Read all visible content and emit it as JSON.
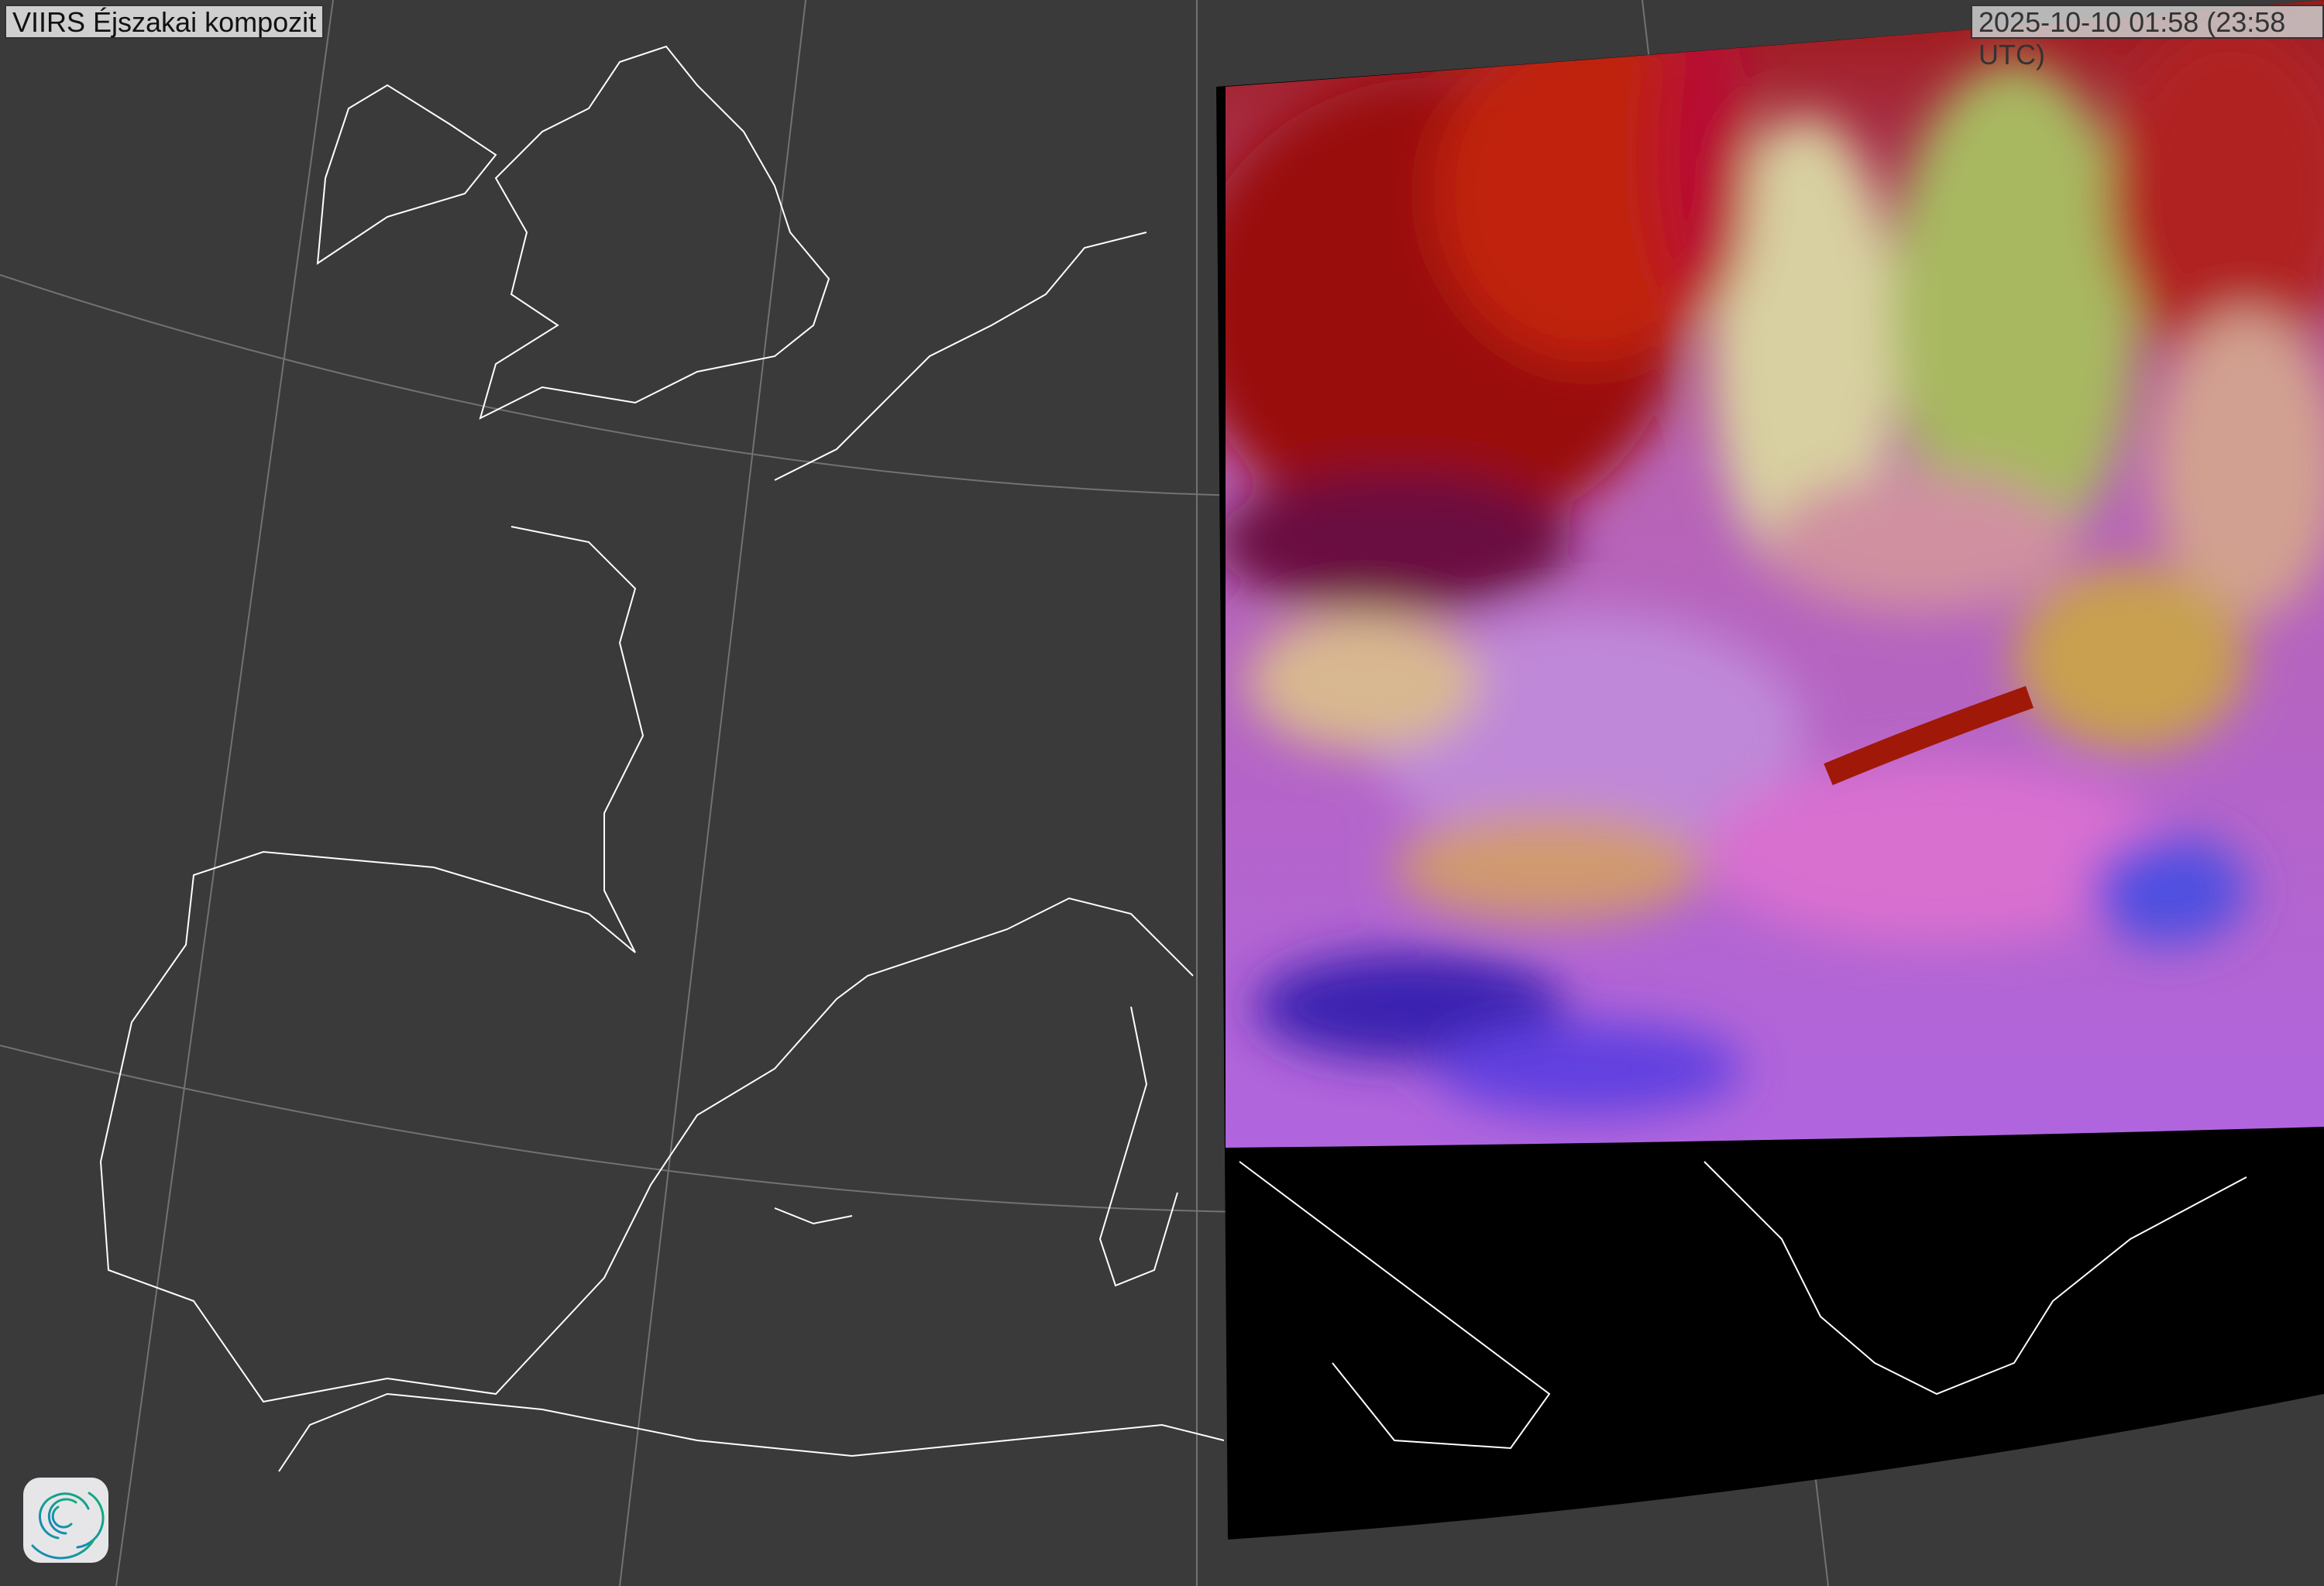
{
  "title": "VIIRS Éjszakai kompozit",
  "timestamp": "2025-10-10 01:58 (23:58 UTC)",
  "colors": {
    "background": "#3a3a3a",
    "no_data": "#000000",
    "coastline": "#ffffff",
    "graticule": "#8a8a8a",
    "logo_teal": "#12a98a",
    "logo_blue": "#1a84c2"
  },
  "logo": {
    "icon": "swirl-logo-icon"
  }
}
